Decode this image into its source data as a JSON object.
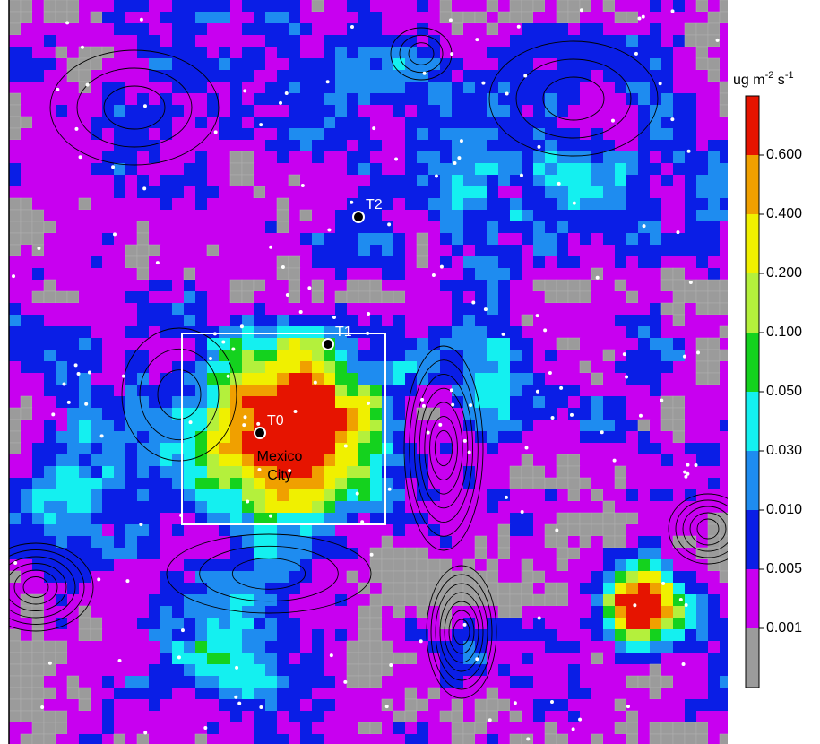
{
  "colorbar": {
    "unit": {
      "base": "ug m",
      "exp1": "-2",
      "mid": " s",
      "exp2": "-1"
    },
    "colors": [
      "#9b9b9b",
      "#c800f0",
      "#0a1ee6",
      "#1e8cf0",
      "#14f0f0",
      "#14d21e",
      "#b4f03c",
      "#f0f000",
      "#f0a000",
      "#e61400"
    ],
    "ticks": [
      {
        "value": 0.001,
        "label": "0.001"
      },
      {
        "value": 0.005,
        "label": "0.005"
      },
      {
        "value": 0.01,
        "label": "0.010"
      },
      {
        "value": 0.03,
        "label": "0.030"
      },
      {
        "value": 0.05,
        "label": "0.050"
      },
      {
        "value": 0.1,
        "label": "0.100"
      },
      {
        "value": 0.2,
        "label": "0.200"
      },
      {
        "value": 0.4,
        "label": "0.400"
      },
      {
        "value": 0.6,
        "label": "0.600"
      }
    ]
  },
  "sites": [
    {
      "label": "T2"
    },
    {
      "label": "T1"
    },
    {
      "label": "T0"
    }
  ],
  "city": {
    "lines": [
      "Mexico",
      "City"
    ]
  }
}
